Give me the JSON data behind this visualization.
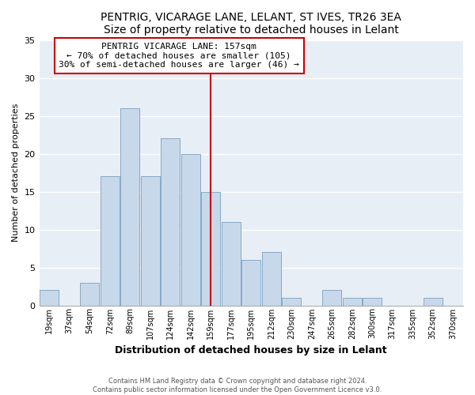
{
  "title": "PENTRIG, VICARAGE LANE, LELANT, ST IVES, TR26 3EA",
  "subtitle": "Size of property relative to detached houses in Lelant",
  "xlabel": "Distribution of detached houses by size in Lelant",
  "ylabel": "Number of detached properties",
  "bin_labels": [
    "19sqm",
    "37sqm",
    "54sqm",
    "72sqm",
    "89sqm",
    "107sqm",
    "124sqm",
    "142sqm",
    "159sqm",
    "177sqm",
    "195sqm",
    "212sqm",
    "230sqm",
    "247sqm",
    "265sqm",
    "282sqm",
    "300sqm",
    "317sqm",
    "335sqm",
    "352sqm",
    "370sqm"
  ],
  "bar_values": [
    2,
    0,
    3,
    17,
    26,
    17,
    22,
    20,
    15,
    11,
    6,
    7,
    1,
    0,
    2,
    1,
    1,
    0,
    0,
    1,
    0
  ],
  "bar_color": "#c8d8eb",
  "bar_edge_color": "#7aa0c0",
  "vline_x_index": 8,
  "vline_color": "#cc0000",
  "annotation_title": "PENTRIG VICARAGE LANE: 157sqm",
  "annotation_line1": "← 70% of detached houses are smaller (105)",
  "annotation_line2": "30% of semi-detached houses are larger (46) →",
  "annotation_box_edge_color": "#cc0000",
  "ylim": [
    0,
    35
  ],
  "yticks": [
    0,
    5,
    10,
    15,
    20,
    25,
    30,
    35
  ],
  "footer_line1": "Contains HM Land Registry data © Crown copyright and database right 2024.",
  "footer_line2": "Contains public sector information licensed under the Open Government Licence v3.0.",
  "background_color": "#ffffff",
  "plot_bg_color": "#e8eef5",
  "grid_color": "#ffffff"
}
